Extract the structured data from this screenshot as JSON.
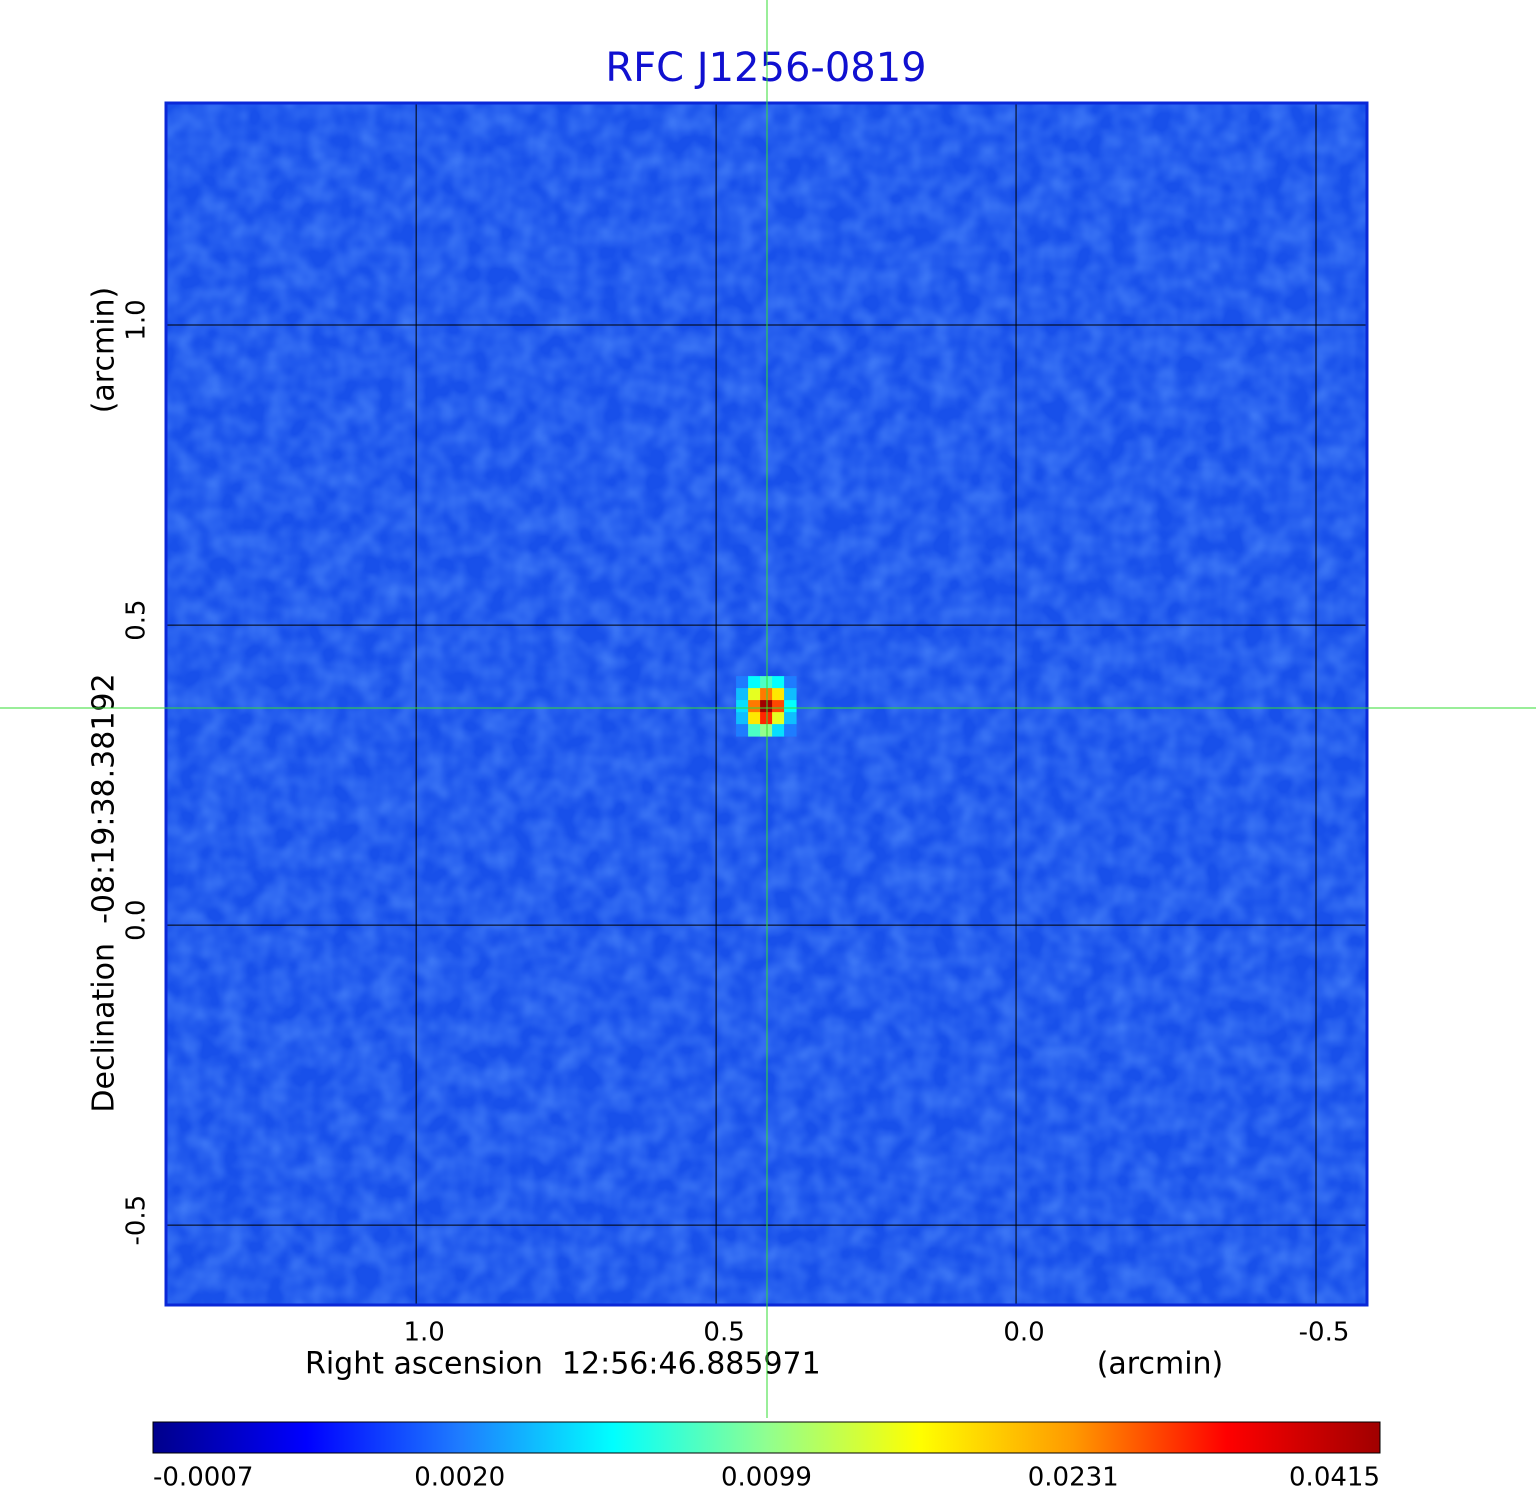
{
  "chart_data": {
    "type": "image",
    "title": "RFC J1256-0819",
    "xlabel": "Right ascension  12:56:46.885971",
    "xunit": "(arcmin)",
    "ylabel": "Declination  -08:19:38.38192",
    "yunit": "(arcmin)",
    "xlim": [
      1.417,
      -0.585
    ],
    "ylim": [
      -0.633,
      1.37
    ],
    "xticks": [
      {
        "value": 1,
        "label": "1.0"
      },
      0.5,
      {
        "value": 0,
        "label": "0.0"
      },
      -0.5
    ],
    "yticks": [
      -0.5,
      {
        "value": 0,
        "label": "0.0"
      },
      0.5,
      {
        "value": 1,
        "label": "1.0"
      }
    ],
    "grid": true,
    "z_xlim": [
      0.4667,
      0.3667
    ],
    "z_ylim": [
      0.415,
      0.315
    ],
    "z": [
      [
        0.002,
        0.006,
        0.008,
        0.006,
        0.002
      ],
      [
        0.004,
        0.015,
        0.025,
        0.018,
        0.004
      ],
      [
        0.005,
        0.025,
        0.0415,
        0.028,
        0.006
      ],
      [
        0.004,
        0.018,
        0.03,
        0.015,
        0.004
      ],
      [
        0.002,
        0.008,
        0.01,
        0.005,
        0.002
      ]
    ],
    "colorbar": {
      "clim": [
        -0.0007,
        0.0415
      ],
      "ticks": [
        -0.0007,
        {
          "value": 0.002,
          "label": "0.0020"
        },
        0.0099,
        0.0231,
        0.0415
      ],
      "colormap": [
        "#00008b",
        "#0000ff",
        "#1e7cff",
        "#00ffff",
        "#90ff90",
        "#ffff00",
        "#ff9900",
        "#ff0000",
        "#a00000"
      ]
    }
  }
}
